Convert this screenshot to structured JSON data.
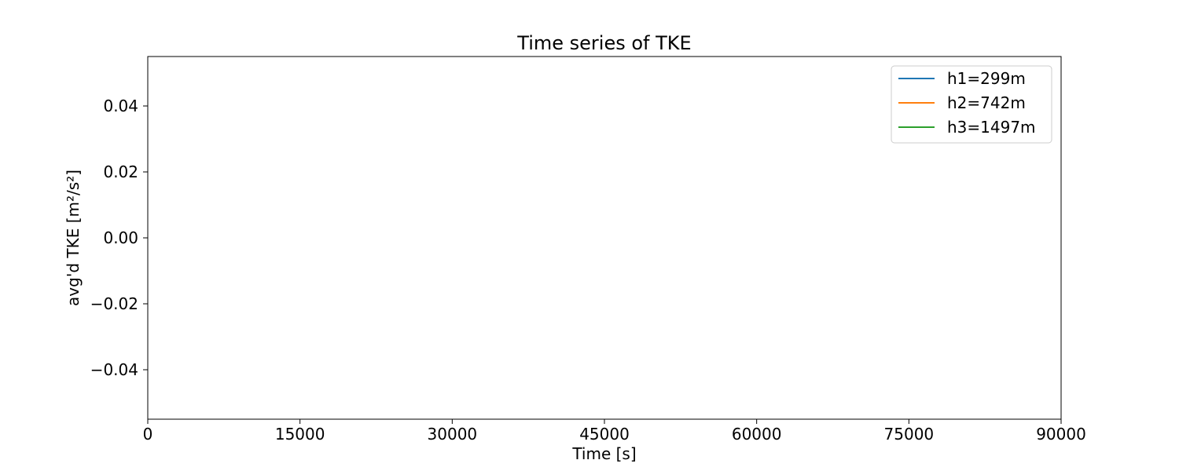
{
  "chart_data": {
    "type": "line",
    "title": "Time series of TKE",
    "xlabel": "Time [s]",
    "ylabel": "avg'd TKE [m²/s²]",
    "xlim": [
      0,
      90000
    ],
    "ylim": [
      -0.055,
      0.055
    ],
    "x_ticks": [
      0,
      15000,
      30000,
      45000,
      60000,
      75000,
      90000
    ],
    "x_tick_labels": [
      "0",
      "15000",
      "30000",
      "45000",
      "60000",
      "75000",
      "90000"
    ],
    "y_ticks": [
      -0.04,
      -0.02,
      0.0,
      0.02,
      0.04
    ],
    "y_tick_labels": [
      "−0.04",
      "−0.02",
      "0.00",
      "0.02",
      "0.04"
    ],
    "grid": false,
    "legend_position": "top-right",
    "series": [
      {
        "name": "h1=299m",
        "color": "#1f77b4",
        "x": [],
        "y": []
      },
      {
        "name": "h2=742m",
        "color": "#ff7f0e",
        "x": [],
        "y": []
      },
      {
        "name": "h3=1497m",
        "color": "#2ca02c",
        "x": [],
        "y": []
      }
    ]
  }
}
